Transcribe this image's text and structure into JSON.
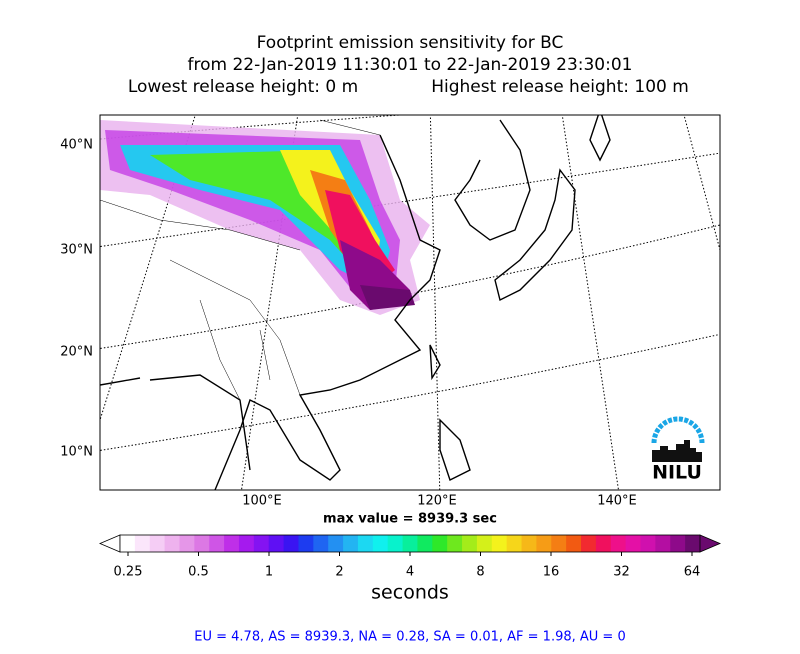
{
  "title": [
    "Footprint emission sensitivity for BC",
    "from 22-Jan-2019 11:30:01 to 22-Jan-2019 23:30:01",
    "Lowest release height: 0 m",
    "Highest release height: 100 m"
  ],
  "map": {
    "lat_labels": [
      "40°N",
      "30°N",
      "20°N",
      "10°N"
    ],
    "lon_labels": [
      "100°E",
      "120°E",
      "140°E"
    ],
    "max_label": "max value = 8939.3 sec",
    "logo": "NILU"
  },
  "colorbar": {
    "label": "seconds",
    "log": true,
    "range": [
      0.25,
      64
    ],
    "ticks": [
      0.25,
      0.5,
      1,
      2,
      4,
      8,
      16,
      32,
      64
    ],
    "colors": [
      "#ffffff",
      "#fbe6fb",
      "#f5cdf5",
      "#eeb2ee",
      "#e596e8",
      "#dc78e4",
      "#cf55e6",
      "#bf2fe8",
      "#a51aee",
      "#8413f2",
      "#5f10f4",
      "#3a14f2",
      "#1d3cf0",
      "#1f65f2",
      "#2390f2",
      "#23b4f2",
      "#1cd8f2",
      "#10f0ee",
      "#08f2cc",
      "#08ef9c",
      "#10ea60",
      "#2ee82a",
      "#6ee81e",
      "#a4ec1a",
      "#d4f01a",
      "#f4f21c",
      "#f6d61a",
      "#f6b818",
      "#f69c16",
      "#f47e14",
      "#f25a12",
      "#f22a30",
      "#f0105e",
      "#ee108a",
      "#e410a6",
      "#d010ae",
      "#b40ea2",
      "#8e0a8a",
      "#6a0a6e"
    ]
  },
  "stats": "EU = 4.78,  AS = 8939.3,  NA = 0.28,  SA = 0.01,  AF = 1.98,  AU = 0"
}
